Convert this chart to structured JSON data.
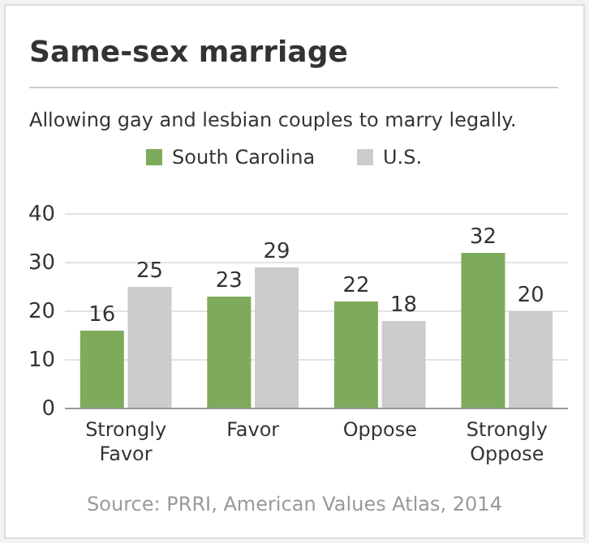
{
  "chart_data": {
    "type": "bar",
    "title": "Same-sex marriage",
    "subtitle": "Allowing gay and lesbian couples to marry legally.",
    "categories": [
      "Strongly Favor",
      "Favor",
      "Oppose",
      "Strongly Oppose"
    ],
    "series": [
      {
        "name": "South Carolina",
        "color": "#7dab5b",
        "values": [
          16,
          23,
          22,
          32
        ]
      },
      {
        "name": "U.S.",
        "color": "#cccccc",
        "values": [
          25,
          29,
          18,
          20
        ]
      }
    ],
    "ylim": [
      0,
      40
    ],
    "yticks": [
      0,
      10,
      20,
      30,
      40
    ],
    "grid": "y",
    "legend": "top",
    "data_labels": true,
    "annotations": [
      "Source: PRRI, American Values Atlas, 2014"
    ]
  }
}
